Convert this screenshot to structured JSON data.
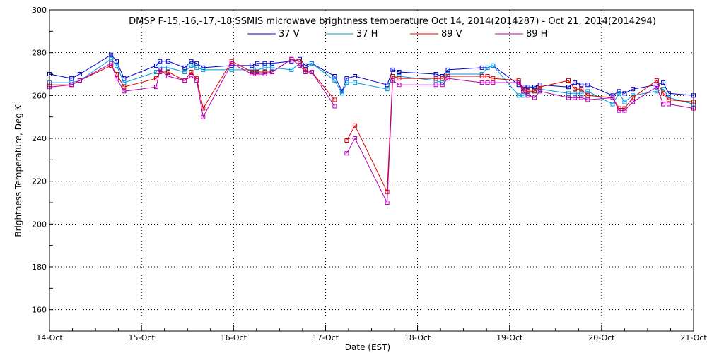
{
  "chart_data": {
    "type": "line",
    "title": "DMSP F-15,-16,-17,-18 SSMIS microwave brightness temperature Oct 14, 2014(2014287) - Oct 21, 2014(2014294)",
    "xlabel": "Date (EST)",
    "ylabel": "Brightness Temperature, Deg K",
    "x_unit": "days since 14-Oct 00:00",
    "xlim": [
      0,
      7
    ],
    "ylim": [
      150,
      300
    ],
    "yticks": [
      160,
      180,
      200,
      220,
      240,
      260,
      280,
      300
    ],
    "xtick_labels": [
      "14-Oct",
      "15-Oct",
      "16-Oct",
      "17-Oct",
      "18-Oct",
      "19-Oct",
      "20-Oct",
      "21-Oct"
    ],
    "grid": true,
    "legend_position": "top-center",
    "series": [
      {
        "name": "37 V",
        "color": "#0000c8",
        "points": [
          [
            0,
            270
          ],
          [
            0.24,
            268
          ],
          [
            0.33,
            270
          ],
          [
            0.67,
            279
          ],
          [
            0.73,
            276
          ],
          [
            0.81,
            268
          ],
          [
            1.16,
            274
          ],
          [
            1.2,
            276
          ],
          [
            1.29,
            276
          ],
          [
            1.47,
            273
          ],
          [
            1.54,
            276
          ],
          [
            1.6,
            275
          ],
          [
            1.67,
            273
          ],
          [
            1.98,
            274
          ],
          [
            2.2,
            274
          ],
          [
            2.26,
            275
          ],
          [
            2.34,
            275
          ],
          [
            2.42,
            275
          ],
          [
            2.63,
            276
          ],
          [
            2.72,
            277
          ],
          [
            2.78,
            274
          ],
          [
            2.85,
            275
          ],
          [
            3.1,
            269
          ],
          [
            3.18,
            262
          ],
          [
            3.23,
            268
          ],
          [
            3.32,
            269
          ],
          [
            3.67,
            265
          ],
          [
            3.73,
            272
          ],
          [
            3.8,
            271
          ],
          [
            4.2,
            270
          ],
          [
            4.27,
            269
          ],
          [
            4.33,
            272
          ],
          [
            4.7,
            273
          ],
          [
            4.76,
            273
          ],
          [
            4.82,
            274
          ],
          [
            5.1,
            265
          ],
          [
            5.15,
            264
          ],
          [
            5.2,
            264
          ],
          [
            5.27,
            264
          ],
          [
            5.33,
            265
          ],
          [
            5.64,
            264
          ],
          [
            5.71,
            266
          ],
          [
            5.78,
            265
          ],
          [
            5.85,
            265
          ],
          [
            6.12,
            260
          ],
          [
            6.19,
            262
          ],
          [
            6.25,
            261
          ],
          [
            6.34,
            263
          ],
          [
            6.6,
            265
          ],
          [
            6.67,
            266
          ],
          [
            6.73,
            261
          ],
          [
            7,
            260
          ]
        ]
      },
      {
        "name": "37 H",
        "color": "#0096dc",
        "points": [
          [
            0,
            266
          ],
          [
            0.24,
            266
          ],
          [
            0.33,
            267
          ],
          [
            0.67,
            277
          ],
          [
            0.73,
            274
          ],
          [
            0.81,
            266
          ],
          [
            1.16,
            271
          ],
          [
            1.2,
            273
          ],
          [
            1.29,
            273
          ],
          [
            1.47,
            271
          ],
          [
            1.54,
            274
          ],
          [
            1.6,
            273
          ],
          [
            1.67,
            272
          ],
          [
            1.98,
            272
          ],
          [
            2.2,
            272
          ],
          [
            2.26,
            272
          ],
          [
            2.34,
            273
          ],
          [
            2.42,
            273
          ],
          [
            2.63,
            272
          ],
          [
            2.72,
            275
          ],
          [
            2.78,
            272
          ],
          [
            2.85,
            275
          ],
          [
            3.1,
            267
          ],
          [
            3.18,
            261
          ],
          [
            3.23,
            266
          ],
          [
            3.32,
            266
          ],
          [
            3.67,
            263
          ],
          [
            3.73,
            269
          ],
          [
            3.8,
            269
          ],
          [
            4.2,
            267
          ],
          [
            4.27,
            266
          ],
          [
            4.33,
            270
          ],
          [
            4.7,
            270
          ],
          [
            4.76,
            273
          ],
          [
            4.82,
            274
          ],
          [
            5.1,
            260
          ],
          [
            5.15,
            260
          ],
          [
            5.2,
            261
          ],
          [
            5.27,
            262
          ],
          [
            5.33,
            263
          ],
          [
            5.64,
            261
          ],
          [
            5.71,
            261
          ],
          [
            5.78,
            261
          ],
          [
            5.85,
            262
          ],
          [
            6.12,
            256
          ],
          [
            6.19,
            261
          ],
          [
            6.25,
            257
          ],
          [
            6.34,
            260
          ],
          [
            6.6,
            262
          ],
          [
            6.67,
            263
          ],
          [
            6.73,
            259
          ],
          [
            7,
            256
          ]
        ]
      },
      {
        "name": "89 V",
        "color": "#dc0000",
        "points": [
          [
            0,
            265
          ],
          [
            0.24,
            265
          ],
          [
            0.33,
            267
          ],
          [
            0.67,
            274
          ],
          [
            0.73,
            270
          ],
          [
            0.81,
            264
          ],
          [
            1.16,
            268
          ],
          [
            1.2,
            271
          ],
          [
            1.29,
            271
          ],
          [
            1.47,
            267
          ],
          [
            1.54,
            271
          ],
          [
            1.6,
            268
          ],
          [
            1.67,
            254
          ],
          [
            1.98,
            276
          ],
          [
            2.2,
            271
          ],
          [
            2.26,
            271
          ],
          [
            2.34,
            271
          ],
          [
            2.42,
            271
          ],
          [
            2.63,
            277
          ],
          [
            2.72,
            276
          ],
          [
            2.78,
            272
          ],
          [
            2.85,
            271
          ],
          [
            3.1,
            258
          ],
          null,
          [
            3.23,
            239
          ],
          [
            3.32,
            246
          ],
          [
            3.67,
            215
          ],
          [
            3.73,
            269
          ],
          [
            3.8,
            268
          ],
          [
            4.2,
            268
          ],
          [
            4.27,
            268
          ],
          [
            4.33,
            269
          ],
          [
            4.7,
            269
          ],
          [
            4.76,
            269
          ],
          [
            4.82,
            268
          ],
          [
            5.1,
            267
          ],
          [
            5.15,
            263
          ],
          [
            5.2,
            262
          ],
          [
            5.27,
            262
          ],
          [
            5.33,
            264
          ],
          [
            5.64,
            267
          ],
          [
            5.71,
            263
          ],
          [
            5.78,
            263
          ],
          [
            5.85,
            260
          ],
          [
            6.12,
            259
          ],
          [
            6.19,
            254
          ],
          [
            6.25,
            254
          ],
          [
            6.34,
            259
          ],
          [
            6.6,
            267
          ],
          [
            6.67,
            261
          ],
          [
            6.73,
            258
          ],
          [
            7,
            257
          ]
        ]
      },
      {
        "name": "89 H",
        "color": "#b400b4",
        "points": [
          [
            0,
            264
          ],
          [
            0.24,
            265
          ],
          [
            0.33,
            267
          ],
          [
            0.67,
            275
          ],
          [
            0.73,
            268
          ],
          [
            0.81,
            262
          ],
          [
            1.16,
            264
          ],
          [
            1.2,
            272
          ],
          [
            1.29,
            269
          ],
          [
            1.47,
            267
          ],
          [
            1.54,
            269
          ],
          [
            1.6,
            267
          ],
          [
            1.67,
            250
          ],
          [
            1.98,
            275
          ],
          [
            2.2,
            270
          ],
          [
            2.26,
            270
          ],
          [
            2.34,
            270
          ],
          [
            2.42,
            271
          ],
          [
            2.63,
            277
          ],
          [
            2.72,
            274
          ],
          [
            2.78,
            271
          ],
          [
            2.85,
            271
          ],
          [
            3.1,
            255
          ],
          null,
          [
            3.23,
            233
          ],
          [
            3.32,
            240
          ],
          [
            3.67,
            210
          ],
          [
            3.73,
            267
          ],
          [
            3.8,
            265
          ],
          [
            4.2,
            265
          ],
          [
            4.27,
            265
          ],
          [
            4.33,
            268
          ],
          [
            4.7,
            266
          ],
          [
            4.76,
            266
          ],
          [
            4.82,
            266
          ],
          [
            5.1,
            266
          ],
          [
            5.15,
            262
          ],
          [
            5.2,
            260
          ],
          [
            5.27,
            259
          ],
          [
            5.33,
            262
          ],
          [
            5.64,
            259
          ],
          [
            5.71,
            259
          ],
          [
            5.78,
            259
          ],
          [
            5.85,
            258
          ],
          [
            6.12,
            259
          ],
          [
            6.19,
            253
          ],
          [
            6.25,
            253
          ],
          [
            6.34,
            257
          ],
          [
            6.6,
            264
          ],
          [
            6.67,
            256
          ],
          [
            6.73,
            256
          ],
          [
            7,
            254
          ]
        ]
      }
    ]
  }
}
